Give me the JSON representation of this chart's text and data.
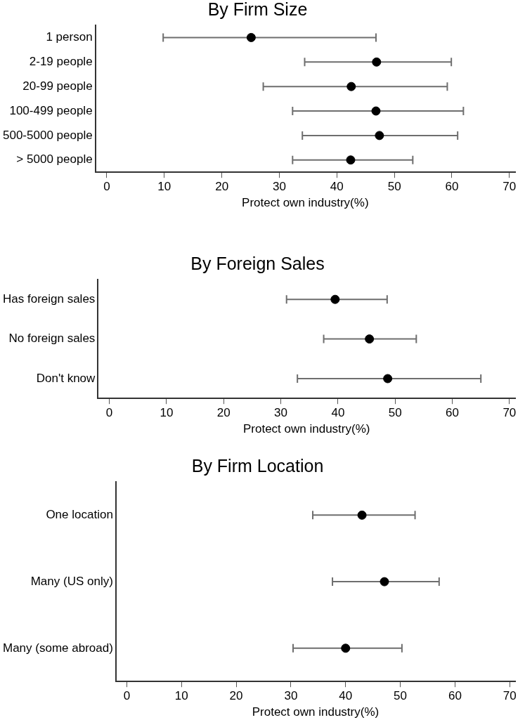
{
  "chart_data": [
    {
      "type": "scatter",
      "orientation": "horizontal",
      "title": "By Firm Size",
      "xlabel": "Protect own industry(%)",
      "categories": [
        "1 person",
        "2-19 people",
        "20-99 people",
        "100-499 people",
        "500-5000 people",
        "> 5000 people"
      ],
      "values": [
        25.1,
        46.9,
        42.5,
        46.8,
        47.4,
        42.4
      ],
      "errors": [
        [
          9.8,
          46.8
        ],
        [
          34.4,
          59.9
        ],
        [
          27.2,
          59.2
        ],
        [
          32.3,
          62.0
        ],
        [
          34.0,
          61.0
        ],
        [
          32.3,
          53.2
        ]
      ],
      "color": "#000000",
      "marker": "circle",
      "xlim": [
        -2,
        71
      ],
      "xticks": [
        0,
        10,
        20,
        30,
        40,
        50,
        60,
        70
      ]
    },
    {
      "type": "scatter",
      "orientation": "horizontal",
      "title": "By Foreign Sales",
      "xlabel": "Protect own industry(%)",
      "categories": [
        "Has foreign sales",
        "No foreign sales",
        "Don't know"
      ],
      "values": [
        39.5,
        45.5,
        48.7
      ],
      "errors": [
        [
          31.0,
          48.6
        ],
        [
          37.5,
          53.7
        ],
        [
          32.9,
          65.0
        ]
      ],
      "color": "#000000",
      "marker": "circle",
      "xlim": [
        -2,
        71
      ],
      "xticks": [
        0,
        10,
        20,
        30,
        40,
        50,
        60,
        70
      ]
    },
    {
      "type": "scatter",
      "orientation": "horizontal",
      "title": "By Firm Location",
      "xlabel": "Protect own industry(%)",
      "categories": [
        "One location",
        "Many (US only)",
        "Many (some abroad)"
      ],
      "values": [
        43.0,
        47.1,
        40.0
      ],
      "errors": [
        [
          34.0,
          52.7
        ],
        [
          37.6,
          57.1
        ],
        [
          30.4,
          50.3
        ]
      ],
      "color": "#000000",
      "marker": "circle",
      "xlim": [
        -2,
        71
      ],
      "xticks": [
        0,
        10,
        20,
        30,
        40,
        50,
        60,
        70
      ]
    }
  ]
}
